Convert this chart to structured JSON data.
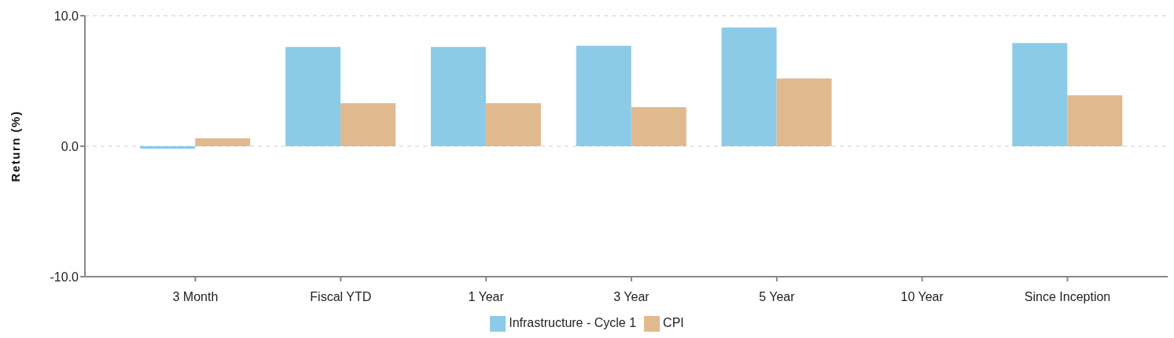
{
  "chart_data": {
    "type": "bar",
    "ylabel": "Return (%)",
    "categories": [
      "3 Month",
      "Fiscal YTD",
      "1 Year",
      "3 Year",
      "5 Year",
      "10 Year",
      "Since Inception"
    ],
    "series": [
      {
        "name": "Infrastructure - Cycle 1",
        "color": "#8ccbe7",
        "values": [
          -0.2,
          7.6,
          7.6,
          7.7,
          9.1,
          null,
          7.9
        ]
      },
      {
        "name": "CPI",
        "color": "#e1b98f",
        "values": [
          0.6,
          3.3,
          3.3,
          3.0,
          5.2,
          null,
          3.9
        ]
      }
    ],
    "ylim": [
      -10,
      10
    ],
    "yticks": [
      {
        "value": -10,
        "label": "-10.0"
      },
      {
        "value": 0,
        "label": "0.0"
      },
      {
        "value": 10,
        "label": "10.0"
      }
    ],
    "grid": "y",
    "legend": "bottom"
  }
}
